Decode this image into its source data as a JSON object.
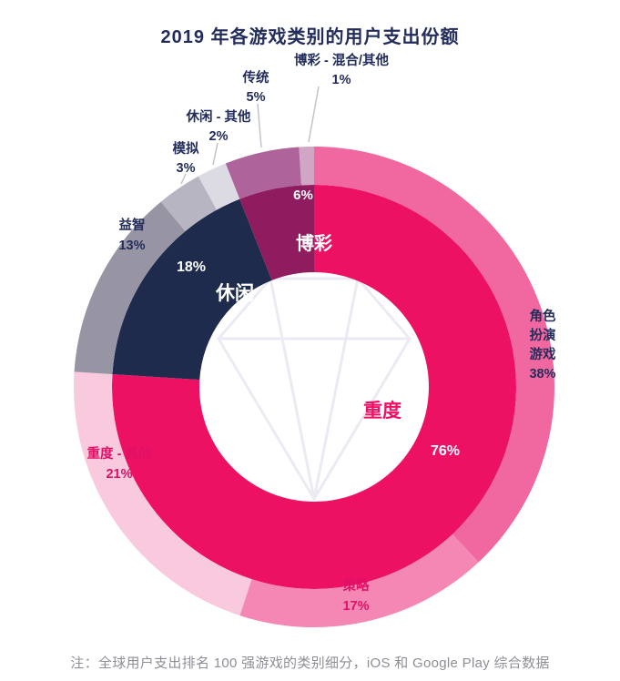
{
  "title": "2019 年各游戏类别的用户支出份额",
  "note": "注：全球用户支出排名 100 强游戏的类别细分，iOS 和 Google Play 综合数据",
  "colors": {
    "background": "#ffffff",
    "title_text": "#232d5b",
    "note_text": "#8e8e97",
    "leader_line": "#c3c2cc",
    "watermark": "#eceaf2"
  },
  "chart_data": {
    "type": "donut",
    "variant": "two-ring-sunburst",
    "unit": "%",
    "start_angle_deg": 0,
    "direction": "clockwise",
    "watermark": "diamond-gem",
    "inner_ring": {
      "segments": [
        {
          "id": "heavy",
          "label": "重度",
          "value": 76,
          "color": "#ed1164",
          "label_color": "#ed1164",
          "pct_color": "#ffffff"
        },
        {
          "id": "casual",
          "label": "休闲",
          "value": 18,
          "color": "#1f2b4d",
          "label_color": "#ffffff",
          "pct_color": "#ffffff"
        },
        {
          "id": "gambling",
          "label": "博彩",
          "value": 6,
          "color": "#8e1c5e",
          "label_color": "#ffffff",
          "pct_color": "#ffffff"
        }
      ]
    },
    "outer_ring": {
      "segments": [
        {
          "id": "rpg",
          "parent": "heavy",
          "label": "角色扮演游戏",
          "value": 38,
          "color": "#f1679f",
          "label_color": "#232d5b"
        },
        {
          "id": "strategy",
          "parent": "heavy",
          "label": "策略",
          "value": 17,
          "color": "#f587b4",
          "label_color": "#e01066"
        },
        {
          "id": "heavy-other",
          "parent": "heavy",
          "label": "重度 - 其他",
          "value": 21,
          "color": "#f9cade",
          "label_color": "#e01066"
        },
        {
          "id": "puzzle",
          "parent": "casual",
          "label": "益智",
          "value": 13,
          "color": "#9795a4",
          "label_color": "#232d5b"
        },
        {
          "id": "simulation",
          "parent": "casual",
          "label": "模拟",
          "value": 3,
          "color": "#b7b5c2",
          "label_color": "#232d5b"
        },
        {
          "id": "casual-other",
          "parent": "casual",
          "label": "休闲 - 其他",
          "value": 2,
          "color": "#dcdbe3",
          "label_color": "#232d5b"
        },
        {
          "id": "traditional",
          "parent": "gambling",
          "label": "传统",
          "value": 5,
          "color": "#ae649a",
          "label_color": "#232d5b"
        },
        {
          "id": "gambling-other",
          "parent": "gambling",
          "label": "博彩 - 混合/其他",
          "value": 1,
          "color": "#d1a6c5",
          "label_color": "#232d5b"
        }
      ]
    }
  }
}
